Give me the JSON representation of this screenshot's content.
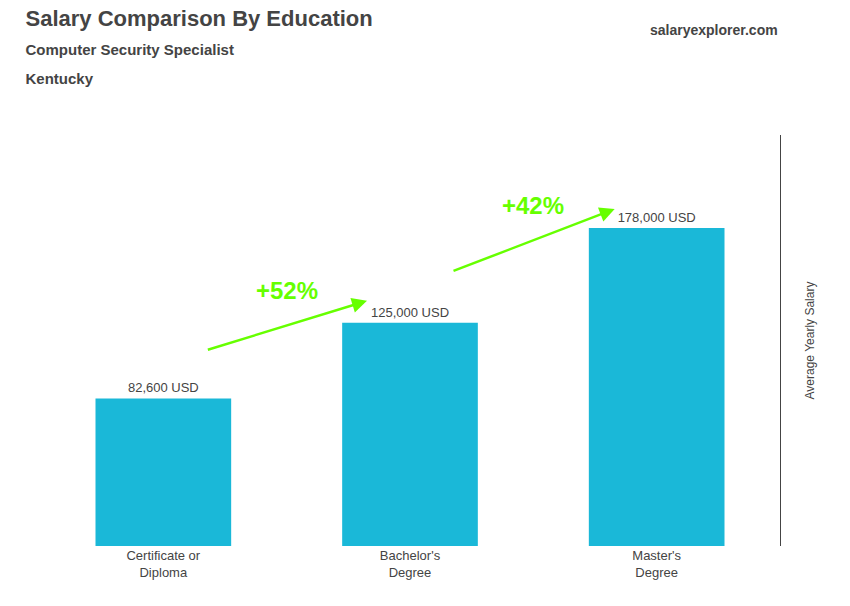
{
  "chart_data": {
    "type": "bar",
    "title": "Salary Comparison By Education",
    "subtitle": [
      "Computer Security Specialist",
      "Kentucky"
    ],
    "y_label": "Average Yearly Salary",
    "categories": [
      "Certificate or\nDiploma",
      "Bachelor's\nDegree",
      "Master's\nDegree"
    ],
    "values": [
      82600,
      125000,
      178000
    ],
    "value_labels": [
      "82,600 USD",
      "125,000 USD",
      "178,000 USD"
    ],
    "data_labels": true,
    "color": "#1ab8d8",
    "ylim": [
      0,
      230000
    ],
    "grid": false,
    "tick_labels": "x",
    "annotations": [
      {
        "text": "salaryexplorer.com"
      },
      {
        "text": "+52%",
        "from": "Certificate or\nDiploma",
        "to": "Bachelor's\nDegree",
        "color": "#66ff00"
      },
      {
        "text": "+42%",
        "from": "Bachelor's\nDegree",
        "to": "Master's\nDegree",
        "color": "#66ff00"
      }
    ]
  }
}
